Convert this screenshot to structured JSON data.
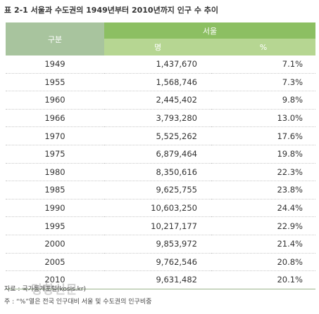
{
  "title": "표 2-1 서울과 수도권의 1949년부터 2010년까지 인구 수 추이",
  "table": {
    "header": {
      "category": "구분",
      "group": "서울",
      "columns": [
        "명",
        "%"
      ]
    },
    "rows": [
      [
        "1949",
        "1,437,670",
        "7.1%"
      ],
      [
        "1955",
        "1,568,746",
        "7.3%"
      ],
      [
        "1960",
        "2,445,402",
        "9.8%"
      ],
      [
        "1966",
        "3,793,280",
        "13.0%"
      ],
      [
        "1970",
        "5,525,262",
        "17.6%"
      ],
      [
        "1975",
        "6,879,464",
        "19.8%"
      ],
      [
        "1980",
        "8,350,616",
        "22.3%"
      ],
      [
        "1985",
        "9,625,755",
        "23.8%"
      ],
      [
        "1990",
        "10,603,250",
        "24.4%"
      ],
      [
        "1995",
        "10,217,177",
        "22.9%"
      ],
      [
        "2000",
        "9,853,972",
        "21.4%"
      ],
      [
        "2005",
        "9,762,546",
        "20.8%"
      ],
      [
        "2010",
        "9,631,482",
        "20.1%"
      ]
    ]
  },
  "notes": [
    "자료 : 국가통계포털(kosis.kr)",
    "주 : “%”열은 전국 인구대비 서울 및 수도권의 인구비중"
  ],
  "watermark": "경향신문"
}
